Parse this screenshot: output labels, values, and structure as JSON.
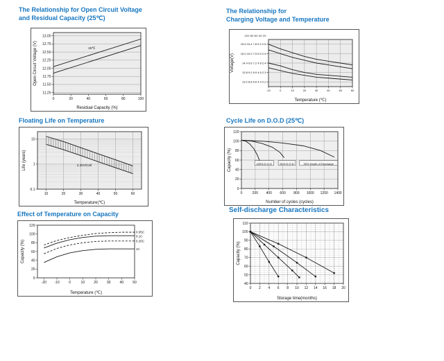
{
  "page": {
    "background": "#ffffff"
  },
  "colors": {
    "title_blue": "#1877c0",
    "line": "#1a1a1a"
  },
  "chart_data": [
    {
      "id": "open-circuit-voltage",
      "type": "line",
      "title": "The Relationship for Open Circuit Voltage and Residual Capacity (25℃)",
      "title_lines": [
        "The Relationship for Open Circuit Voltage",
        "and Residual Capacity (25℃)"
      ],
      "xlabel": "Residual Capacity (%)",
      "ylabel": "Open Circuit Voltage (V)",
      "xlim": [
        0,
        100
      ],
      "ylim": [
        11.2,
        13.1
      ],
      "x_ticks": [
        0,
        20,
        40,
        60,
        80,
        100
      ],
      "x_tick_labels": [
        "0",
        "20",
        "40",
        "60",
        "80",
        "100"
      ],
      "y_ticks": [
        11.25,
        11.5,
        11.75,
        12,
        12.25,
        12.5,
        12.75,
        13
      ],
      "y_tick_labels": [
        "11.25",
        "11.50",
        "11.75",
        "12.00",
        "12.25",
        "12.50",
        "12.75",
        "13.00"
      ],
      "grid": {
        "x": false,
        "y": true
      },
      "series": [
        {
          "name": "upper-limit",
          "points": [
            [
              0,
              12.05
            ],
            [
              100,
              12.9
            ]
          ]
        },
        {
          "name": "lower-limit",
          "points": [
            [
              0,
              11.85
            ],
            [
              100,
              12.7
            ]
          ]
        }
      ],
      "annotations": [
        {
          "text": "25℃",
          "x": 44,
          "y": 12.62,
          "anchor": "middle"
        }
      ]
    },
    {
      "id": "charging-voltage",
      "type": "line",
      "title": "The Relationship for Charging Voltage and Temperature",
      "title_lines": [
        "The Relationship for",
        "Charging Voltage and Temperature"
      ],
      "xlabel": "Temperature (℃)",
      "ylabel": "Voltage(V)",
      "y_header": "12V  8V  6V  4V  2V",
      "xlim": [
        -10,
        60
      ],
      "ylim": [
        2.15,
        2.65
      ],
      "x_ticks": [
        -10,
        0,
        10,
        20,
        30,
        40,
        50,
        60
      ],
      "x_tick_labels": [
        "-10",
        "0",
        "10",
        "20",
        "30",
        "40",
        "50",
        "60"
      ],
      "y_ticks": [
        2.6,
        2.5,
        2.4,
        2.3,
        2.2
      ],
      "y_tick_labels": [
        "15.6 10.4 7.8 5.2 2.6",
        "15.0 10.0 7.5 5.0 2.5",
        "14.4 9.6 7.2 4.8 2.4",
        "13.8 9.2 6.9 4.6 2.3",
        "13.2 8.8 6.6 4.4 2.2"
      ],
      "grid": {
        "x": true,
        "y": true
      },
      "series": [
        {
          "name": "cycle-use-max",
          "points": [
            [
              -10,
              2.6
            ],
            [
              0,
              2.55
            ],
            [
              10,
              2.51
            ],
            [
              20,
              2.47
            ],
            [
              30,
              2.44
            ],
            [
              40,
              2.42
            ],
            [
              50,
              2.4
            ],
            [
              60,
              2.38
            ]
          ]
        },
        {
          "name": "cycle-use-min",
          "points": [
            [
              -10,
              2.54
            ],
            [
              0,
              2.5
            ],
            [
              10,
              2.46
            ],
            [
              20,
              2.43
            ],
            [
              30,
              2.4
            ],
            [
              40,
              2.38
            ],
            [
              50,
              2.36
            ],
            [
              60,
              2.34
            ]
          ]
        },
        {
          "name": "standby-use-max",
          "points": [
            [
              -10,
              2.4
            ],
            [
              0,
              2.37
            ],
            [
              10,
              2.33
            ],
            [
              20,
              2.3
            ],
            [
              30,
              2.28
            ],
            [
              40,
              2.27
            ],
            [
              50,
              2.26
            ],
            [
              60,
              2.25
            ]
          ]
        },
        {
          "name": "standby-use-min",
          "points": [
            [
              -10,
              2.35
            ],
            [
              0,
              2.32
            ],
            [
              10,
              2.29
            ],
            [
              20,
              2.27
            ],
            [
              30,
              2.25
            ],
            [
              40,
              2.24
            ],
            [
              50,
              2.23
            ],
            [
              60,
              2.22
            ]
          ]
        }
      ],
      "annotations": []
    },
    {
      "id": "floating-life",
      "type": "line",
      "title": "Floating Life on Temperature",
      "title_lines": [
        "Floating Life on Temperature"
      ],
      "xlabel": "Temperature(℃)",
      "ylabel": "Life (years)",
      "xlim": [
        5,
        65
      ],
      "ylim": [
        0.1,
        20
      ],
      "y_scale": "log",
      "x_ticks": [
        10,
        20,
        30,
        40,
        50,
        60
      ],
      "x_tick_labels": [
        "10",
        "20",
        "30",
        "40",
        "50",
        "60"
      ],
      "y_ticks": [
        10,
        1,
        0.1
      ],
      "y_tick_labels": [
        "10",
        "1",
        "0.1"
      ],
      "grid": {
        "x": true,
        "y": true,
        "y_log_minor": true
      },
      "series": [
        {
          "name": "upper",
          "points": [
            [
              10,
              13
            ],
            [
              20,
              8
            ],
            [
              30,
              4.6
            ],
            [
              40,
              2.6
            ],
            [
              50,
              1.5
            ],
            [
              60,
              0.85
            ]
          ]
        },
        {
          "name": "lower",
          "points": [
            [
              10,
              6.2
            ],
            [
              20,
              3.8
            ],
            [
              30,
              2.2
            ],
            [
              40,
              1.25
            ],
            [
              50,
              0.72
            ],
            [
              60,
              0.42
            ]
          ]
        }
      ],
      "hatch_between": [
        0,
        1
      ],
      "annotations": [
        {
          "text": "2.30V/Cell",
          "x": 32,
          "y": 0.9,
          "anchor": "middle"
        }
      ]
    },
    {
      "id": "cycle-life",
      "type": "line",
      "title": "Cycle Life on D.O.D (25℃)",
      "title_lines": [
        "Cycle Life on D.O.D (25℃)"
      ],
      "xlabel": "Number of cycles (cycles)",
      "ylabel": "Capacity (%)",
      "xlim": [
        0,
        1400
      ],
      "ylim": [
        0,
        120
      ],
      "x_ticks": [
        0,
        200,
        400,
        600,
        800,
        1000,
        1200,
        1400
      ],
      "x_tick_labels": [
        "0",
        "200",
        "400",
        "600",
        "800",
        "1000",
        "1200",
        "1400"
      ],
      "y_ticks": [
        0,
        20,
        40,
        60,
        80,
        100,
        120
      ],
      "y_tick_labels": [
        "0",
        "20",
        "40",
        "60",
        "80",
        "100",
        "120"
      ],
      "grid": {
        "x": true,
        "y": true
      },
      "series": [
        {
          "name": "dod-100",
          "points": [
            [
              0,
              102
            ],
            [
              60,
              100
            ],
            [
              120,
              94
            ],
            [
              180,
              84
            ],
            [
              230,
              71
            ],
            [
              265,
              58
            ]
          ]
        },
        {
          "name": "dod-50",
          "points": [
            [
              0,
              102
            ],
            [
              150,
              100
            ],
            [
              300,
              95
            ],
            [
              450,
              87
            ],
            [
              560,
              76
            ],
            [
              620,
              65
            ]
          ]
        },
        {
          "name": "dod-30",
          "points": [
            [
              0,
              102
            ],
            [
              300,
              100
            ],
            [
              600,
              96
            ],
            [
              900,
              90
            ],
            [
              1150,
              80
            ],
            [
              1350,
              66
            ]
          ]
        }
      ],
      "annotations": [
        {
          "text": "100% D.O.D",
          "x": 330,
          "y": 52,
          "anchor": "middle",
          "boxed": true
        },
        {
          "text": "50% D.O.D",
          "x": 660,
          "y": 52,
          "anchor": "middle",
          "boxed": true
        },
        {
          "text": "30% Depth of Discharge",
          "x": 1120,
          "y": 52,
          "anchor": "middle",
          "boxed": true
        }
      ]
    },
    {
      "id": "temperature-capacity",
      "type": "line",
      "title": "Effect of Temperature on Capacity",
      "title_lines": [
        "Effect of Temperature on Capacity"
      ],
      "xlabel": "Temperature (℃)",
      "ylabel": "Capacity (%)",
      "xlim": [
        -25,
        50
      ],
      "ylim": [
        0,
        120
      ],
      "x_ticks": [
        -20,
        -10,
        0,
        10,
        20,
        30,
        40,
        50
      ],
      "x_tick_labels": [
        "-20",
        "-10",
        "0",
        "10",
        "20",
        "30",
        "40",
        "50"
      ],
      "y_ticks": [
        0,
        20,
        40,
        60,
        80,
        100,
        120
      ],
      "y_tick_labels": [
        "0",
        "20",
        "40",
        "60",
        "80",
        "100",
        "120"
      ],
      "grid": {
        "x": false,
        "y": false
      },
      "series": [
        {
          "name": "0.05C",
          "dash": true,
          "points": [
            [
              -20,
              75
            ],
            [
              -10,
              85
            ],
            [
              0,
              92
            ],
            [
              10,
              97
            ],
            [
              20,
              101
            ],
            [
              30,
              103
            ],
            [
              40,
              104
            ],
            [
              50,
              104
            ]
          ]
        },
        {
          "name": "0.1C",
          "points": [
            [
              -20,
              68
            ],
            [
              -10,
              79
            ],
            [
              0,
              87
            ],
            [
              10,
              92
            ],
            [
              20,
              95
            ],
            [
              30,
              96
            ],
            [
              40,
              96
            ],
            [
              50,
              96
            ]
          ]
        },
        {
          "name": "0.25C",
          "dash": true,
          "points": [
            [
              -20,
              55
            ],
            [
              -10,
              67
            ],
            [
              0,
              75
            ],
            [
              10,
              80
            ],
            [
              20,
              83
            ],
            [
              30,
              84
            ],
            [
              40,
              84
            ],
            [
              50,
              84
            ]
          ]
        },
        {
          "name": "1C",
          "points": [
            [
              -20,
              35
            ],
            [
              -10,
              48
            ],
            [
              0,
              57
            ],
            [
              10,
              62
            ],
            [
              20,
              65
            ],
            [
              30,
              66
            ],
            [
              40,
              66
            ],
            [
              50,
              66
            ]
          ]
        }
      ],
      "annotations": [
        {
          "text": "0.05C",
          "x": 51,
          "y": 104,
          "anchor": "start"
        },
        {
          "text": "0.1C",
          "x": 51,
          "y": 95,
          "anchor": "start"
        },
        {
          "text": "0.25C",
          "x": 51,
          "y": 84,
          "anchor": "start"
        },
        {
          "text": "1C",
          "x": 51,
          "y": 66,
          "anchor": "start"
        }
      ]
    },
    {
      "id": "self-discharge",
      "type": "line",
      "title": "Self-discharge Characteristics",
      "title_lines": [
        "Self-discharge Characteristics"
      ],
      "xlabel": "Storage time(months)",
      "ylabel": "Capacity (%)",
      "xlim": [
        0,
        20
      ],
      "ylim": [
        40,
        110
      ],
      "x_ticks": [
        0,
        2,
        4,
        6,
        8,
        10,
        12,
        14,
        16,
        18,
        20
      ],
      "x_tick_labels": [
        "0",
        "2",
        "4",
        "6",
        "8",
        "10",
        "12",
        "14",
        "16",
        "18",
        "20"
      ],
      "y_ticks": [
        40,
        50,
        60,
        70,
        80,
        90,
        100,
        110
      ],
      "y_tick_labels": [
        "40",
        "50",
        "60",
        "70",
        "80",
        "90",
        "100",
        "110"
      ],
      "x_minor_step": 1,
      "y_minor_step": 2.5,
      "grid": {
        "x": true,
        "y": true
      },
      "series": [
        {
          "name": "line-1",
          "markers": true,
          "points": [
            [
              0,
              100
            ],
            [
              2,
              83
            ],
            [
              4,
              65
            ],
            [
              6,
              48
            ]
          ]
        },
        {
          "name": "line-2",
          "markers": true,
          "points": [
            [
              0,
              100
            ],
            [
              3,
              85
            ],
            [
              6,
              70
            ],
            [
              9,
              55
            ],
            [
              10.5,
              47
            ]
          ]
        },
        {
          "name": "line-3",
          "markers": true,
          "points": [
            [
              0,
              100
            ],
            [
              5,
              83
            ],
            [
              10,
              64
            ],
            [
              14,
              48
            ]
          ]
        },
        {
          "name": "line-4",
          "markers": true,
          "points": [
            [
              0,
              100
            ],
            [
              6,
              86
            ],
            [
              12,
              70
            ],
            [
              18,
              52
            ]
          ]
        }
      ],
      "annotations": []
    }
  ]
}
